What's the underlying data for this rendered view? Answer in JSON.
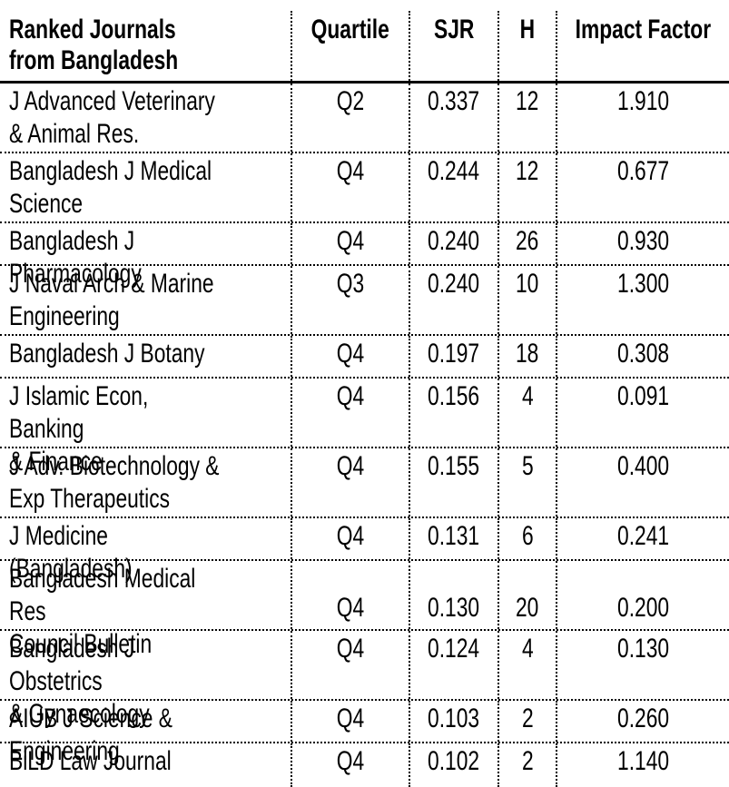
{
  "table": {
    "background_color": "#ffffff",
    "text_color": "#000000",
    "header": {
      "journal_col_lines": [
        "Ranked Journals",
        "from Bangladesh"
      ],
      "quartile": "Quartile",
      "sjr": "SJR",
      "h": "H",
      "impact_factor": "Impact Factor"
    },
    "rows": [
      {
        "name_lines": [
          "J Advanced Veterinary",
          "& Animal Res."
        ],
        "quartile": "Q2",
        "sjr": "0.337",
        "h": "12",
        "impact_factor": "1.910"
      },
      {
        "name_lines": [
          "Bangladesh J Medical",
          "Science"
        ],
        "quartile": "Q4",
        "sjr": "0.244",
        "h": "12",
        "impact_factor": "0.677"
      },
      {
        "name_lines": [
          "Bangladesh J Pharmacology"
        ],
        "quartile": "Q4",
        "sjr": "0.240",
        "h": "26",
        "impact_factor": "0.930"
      },
      {
        "name_lines": [
          "J Naval Arch & Marine",
          "Engineering"
        ],
        "quartile": "Q3",
        "sjr": "0.240",
        "h": "10",
        "impact_factor": "1.300"
      },
      {
        "name_lines": [
          "Bangladesh J Botany"
        ],
        "quartile": "Q4",
        "sjr": "0.197",
        "h": "18",
        "impact_factor": "0.308"
      },
      {
        "name_lines": [
          "J Islamic Econ, Banking",
          "& Finance"
        ],
        "quartile": "Q4",
        "sjr": "0.156",
        "h": "4",
        "impact_factor": "0.091"
      },
      {
        "name_lines": [
          "J Adv. Biotechnology &",
          "Exp Therapeutics"
        ],
        "quartile": "Q4",
        "sjr": "0.155",
        "h": "5",
        "impact_factor": "0.400"
      },
      {
        "name_lines": [
          "J Medicine (Bangladesh)"
        ],
        "quartile": "Q4",
        "sjr": "0.131",
        "h": "6",
        "impact_factor": "0.241"
      },
      {
        "name_lines": [
          "Bangladesh Medical Res",
          "Council Bulletin"
        ],
        "quartile": "Q4",
        "sjr": "0.130",
        "h": "20",
        "impact_factor": "0.200",
        "values_align": "bottom"
      },
      {
        "name_lines": [
          "Bangladesh J Obstetrics",
          "& Gynaecology"
        ],
        "quartile": "Q4",
        "sjr": "0.124",
        "h": "4",
        "impact_factor": "0.130"
      },
      {
        "name_lines": [
          "AIUB J Science & Engineering"
        ],
        "quartile": "Q4",
        "sjr": "0.103",
        "h": "2",
        "impact_factor": "0.260"
      },
      {
        "name_lines": [
          "BiLD Law Journal"
        ],
        "quartile": "Q4",
        "sjr": "0.102",
        "h": "2",
        "impact_factor": "1.140"
      }
    ]
  }
}
